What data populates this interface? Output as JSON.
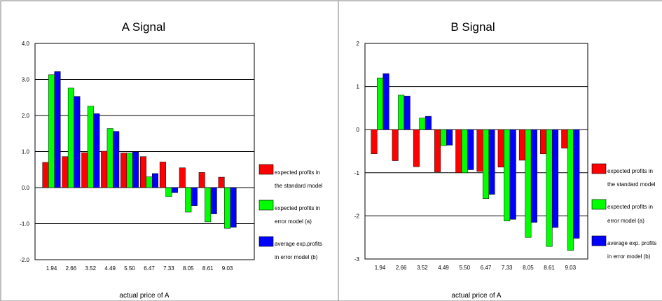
{
  "colors": {
    "standard": "#ff0000",
    "error_a": "#00ff00",
    "error_b": "#0000ff",
    "grid": "#000000",
    "frame": "#7f7f7f"
  },
  "legend": {
    "standard_line1": "expected profits in",
    "standard_line2": "the standard model",
    "error_a_line1": "expected profits in",
    "error_a_line2": "error model (a)",
    "error_b_line1": "average exp.profits",
    "error_b_line2": "in error model (b)"
  },
  "legend_b": {
    "standard_line1": "expected profits in",
    "standard_line2": "the standard model",
    "error_a_line1": "expected profits in",
    "error_a_line2": "error model (a)",
    "error_b_line1": "average exp. profits",
    "error_b_line2": "in error model (b)"
  },
  "chart_data": [
    {
      "type": "bar",
      "title": "A Signal",
      "xlabel": "actual price of A",
      "ylabel": "",
      "categories": [
        "1.94",
        "2.66",
        "3.52",
        "4.49",
        "5.50",
        "6.47",
        "7.33",
        "8.05",
        "8.61",
        "9.03"
      ],
      "ylim": [
        -2,
        4
      ],
      "yticks": [
        "4.0",
        "3.0",
        "2.0",
        "1.0",
        "0.0",
        "-1.0",
        "-2.0"
      ],
      "grid": true,
      "legend_position": "right",
      "series": [
        {
          "values": [
            0.7,
            0.86,
            0.97,
            1.01,
            0.96,
            0.86,
            0.71,
            0.55,
            0.42,
            0.29
          ]
        },
        {
          "values": [
            3.13,
            2.76,
            2.26,
            1.64,
            0.96,
            0.3,
            -0.25,
            -0.68,
            -0.95,
            -1.13
          ]
        },
        {
          "values": [
            3.22,
            2.53,
            2.05,
            1.56,
            0.99,
            0.39,
            -0.14,
            -0.5,
            -0.73,
            -1.1
          ]
        }
      ]
    },
    {
      "type": "bar",
      "title": "B Signal",
      "xlabel": "actual price of A",
      "ylabel": "",
      "categories": [
        "1.94",
        "2.66",
        "3.52",
        "4.49",
        "5.50",
        "6.47",
        "7.33",
        "8.05",
        "8.61",
        "9.03"
      ],
      "ylim": [
        -3,
        2
      ],
      "yticks": [
        "2",
        "1",
        "0",
        "-1",
        "-2",
        "-3"
      ],
      "grid": true,
      "legend_position": "right",
      "series": [
        {
          "values": [
            -0.56,
            -0.72,
            -0.86,
            -0.98,
            -1.0,
            -0.97,
            -0.87,
            -0.71,
            -0.56,
            -0.43
          ]
        },
        {
          "values": [
            1.2,
            0.8,
            0.27,
            -0.37,
            -1.0,
            -1.6,
            -2.12,
            -2.5,
            -2.71,
            -2.8
          ]
        },
        {
          "values": [
            1.3,
            0.78,
            0.31,
            -0.36,
            -0.93,
            -1.5,
            -2.08,
            -2.15,
            -2.27,
            -2.52
          ]
        }
      ]
    }
  ]
}
